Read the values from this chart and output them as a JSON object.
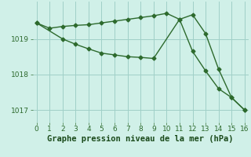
{
  "line1_x": [
    0,
    1,
    2,
    3,
    4,
    5,
    6,
    7,
    8,
    9,
    10,
    11,
    12,
    13,
    14,
    15,
    16
  ],
  "line1_y": [
    1019.45,
    1019.3,
    1019.35,
    1019.38,
    1019.4,
    1019.45,
    1019.5,
    1019.55,
    1019.6,
    1019.65,
    1019.72,
    1019.55,
    1019.68,
    1019.15,
    1018.15,
    1017.35,
    1017.0
  ],
  "line2_x": [
    0,
    2,
    3,
    4,
    5,
    6,
    7,
    8,
    9,
    11,
    12,
    13,
    14,
    15,
    16
  ],
  "line2_y": [
    1019.45,
    1019.0,
    1018.85,
    1018.72,
    1018.6,
    1018.55,
    1018.5,
    1018.48,
    1018.45,
    1019.55,
    1018.65,
    1018.1,
    1017.6,
    1017.35,
    1017.0
  ],
  "line_color": "#2d6a2d",
  "bg_color": "#d0f0e8",
  "grid_color": "#a0d0c8",
  "xlabel": "Graphe pression niveau de la mer (hPa)",
  "xlim": [
    -0.3,
    16.3
  ],
  "ylim": [
    1016.65,
    1020.05
  ],
  "yticks": [
    1017,
    1018,
    1019
  ],
  "xticks": [
    0,
    1,
    2,
    3,
    4,
    5,
    6,
    7,
    8,
    9,
    10,
    11,
    12,
    13,
    14,
    15,
    16
  ],
  "xlabel_color": "#1a4a1a",
  "xlabel_fontsize": 7.5,
  "tick_fontsize": 6.5,
  "marker": "D",
  "markersize": 2.5,
  "linewidth": 1.0
}
